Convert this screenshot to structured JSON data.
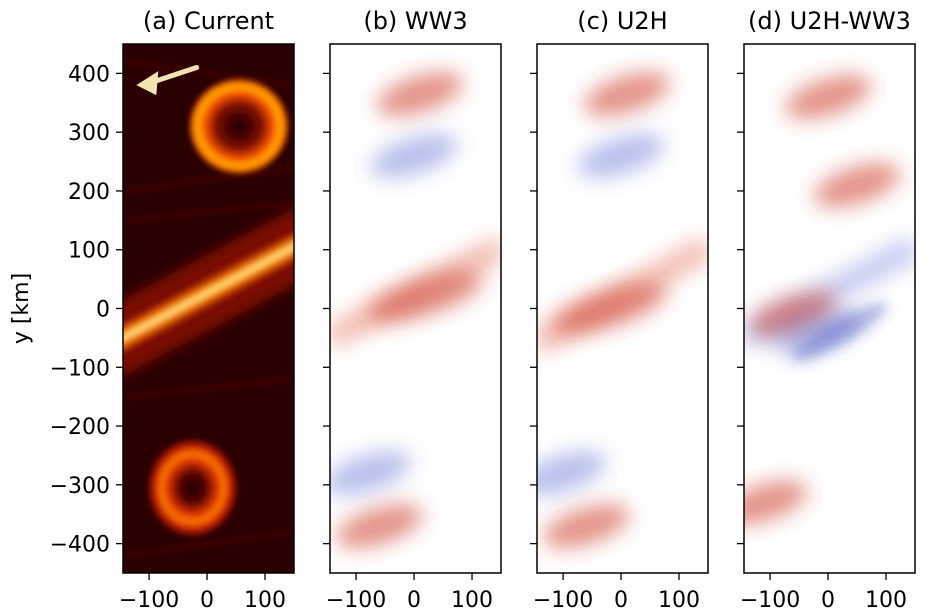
{
  "chart_data": {
    "type": "heatmap",
    "ylabel": "y [km]",
    "xlim": [
      -145,
      150
    ],
    "ylim": [
      -450,
      450
    ],
    "xticks": [
      -100,
      0,
      100
    ],
    "yticks": [
      400,
      300,
      200,
      100,
      0,
      -100,
      -200,
      -300,
      -400
    ],
    "panels": [
      {
        "title": "(a) Current",
        "colormap": "hot",
        "annotation": "arrow pointing toward upper-left (mean wave direction)",
        "features": [
          {
            "kind": "eddy",
            "x": 55,
            "y": 310
          },
          {
            "kind": "jet",
            "from": [
              -145,
              -50
            ],
            "to": [
              150,
              105
            ]
          },
          {
            "kind": "eddy",
            "x": -25,
            "y": -305
          }
        ]
      },
      {
        "title": "(b) WW3",
        "colormap": "diverging red-blue",
        "features": [
          {
            "kind": "positive",
            "x": 10,
            "y": 365
          },
          {
            "kind": "negative",
            "x": 0,
            "y": 260
          },
          {
            "kind": "positive",
            "x": 20,
            "y": 20
          },
          {
            "kind": "negative",
            "x": -80,
            "y": -280
          },
          {
            "kind": "positive",
            "x": -60,
            "y": -370
          }
        ]
      },
      {
        "title": "(c) U2H",
        "colormap": "diverging red-blue",
        "features": [
          {
            "kind": "positive",
            "x": 10,
            "y": 365
          },
          {
            "kind": "negative",
            "x": 0,
            "y": 260
          },
          {
            "kind": "positive",
            "x": -20,
            "y": 0
          },
          {
            "kind": "negative",
            "x": -100,
            "y": -280
          },
          {
            "kind": "positive",
            "x": -60,
            "y": -370
          }
        ]
      },
      {
        "title": "(d) U2H-WW3",
        "colormap": "diverging red-blue",
        "features": [
          {
            "kind": "positive",
            "x": 0,
            "y": 360
          },
          {
            "kind": "positive",
            "x": 50,
            "y": 210
          },
          {
            "kind": "positive",
            "x": -60,
            "y": -10
          },
          {
            "kind": "negative",
            "x": -20,
            "y": -40
          },
          {
            "kind": "positive",
            "x": -110,
            "y": -330
          }
        ]
      }
    ]
  }
}
